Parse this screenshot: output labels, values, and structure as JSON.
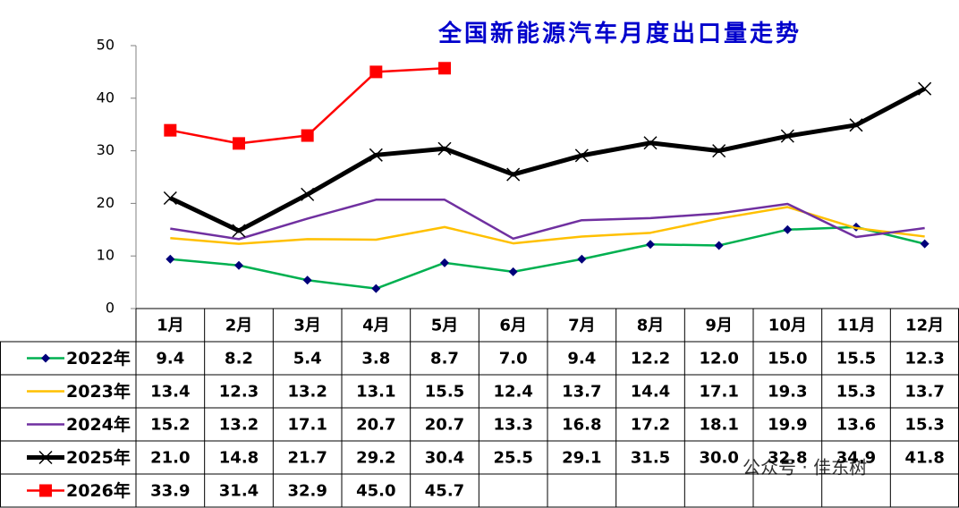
{
  "chart_data": {
    "type": "line",
    "title": "全国新能源汽车月度出口量走势",
    "watermark": "公众号 · 佳东树",
    "categories": [
      "1月",
      "2月",
      "3月",
      "4月",
      "5月",
      "6月",
      "7月",
      "8月",
      "9月",
      "10月",
      "11月",
      "12月"
    ],
    "ylim": [
      0,
      50
    ],
    "yticks": [
      0,
      10,
      20,
      30,
      40,
      50
    ],
    "grid": false,
    "series": [
      {
        "name": "2022年",
        "color": "#00b050",
        "marker": "diamond",
        "marker_color": "#00007a",
        "line_width": 2.5,
        "values": [
          9.4,
          8.2,
          5.4,
          3.8,
          8.7,
          7.0,
          9.4,
          12.2,
          12.0,
          15.0,
          15.5,
          12.3
        ],
        "value_labels": [
          "9.4",
          "8.2",
          "5.4",
          "3.8",
          "8.7",
          "7.0",
          "9.4",
          "12.2",
          "12.0",
          "15.0",
          "15.5",
          "12.3"
        ]
      },
      {
        "name": "2023年",
        "color": "#ffc000",
        "marker": "none",
        "marker_color": "#ffc000",
        "line_width": 2.5,
        "values": [
          13.4,
          12.3,
          13.2,
          13.1,
          15.5,
          12.4,
          13.7,
          14.4,
          17.1,
          19.3,
          15.3,
          13.7
        ],
        "value_labels": [
          "13.4",
          "12.3",
          "13.2",
          "13.1",
          "15.5",
          "12.4",
          "13.7",
          "14.4",
          "17.1",
          "19.3",
          "15.3",
          "13.7"
        ]
      },
      {
        "name": "2024年",
        "color": "#7030a0",
        "marker": "none",
        "marker_color": "#7030a0",
        "line_width": 2.5,
        "values": [
          15.2,
          13.2,
          17.1,
          20.7,
          20.7,
          13.3,
          16.8,
          17.2,
          18.1,
          19.9,
          13.6,
          15.3
        ],
        "value_labels": [
          "15.2",
          "13.2",
          "17.1",
          "20.7",
          "20.7",
          "13.3",
          "16.8",
          "17.2",
          "18.1",
          "19.9",
          "13.6",
          "15.3"
        ]
      },
      {
        "name": "2025年",
        "color": "#000000",
        "marker": "x",
        "marker_color": "#000000",
        "line_width": 5,
        "values": [
          21.0,
          14.8,
          21.7,
          29.2,
          30.4,
          25.5,
          29.1,
          31.5,
          30.0,
          32.8,
          34.9,
          41.8
        ],
        "value_labels": [
          "21.0",
          "14.8",
          "21.7",
          "29.2",
          "30.4",
          "25.5",
          "29.1",
          "31.5",
          "30.0",
          "32.8",
          "34.9",
          "41.8"
        ]
      },
      {
        "name": "2026年",
        "color": "#ff0000",
        "marker": "square",
        "marker_color": "#ff0000",
        "line_width": 2.5,
        "values": [
          33.9,
          31.4,
          32.9,
          45.0,
          45.7,
          null,
          null,
          null,
          null,
          null,
          null,
          null
        ],
        "value_labels": [
          "33.9",
          "31.4",
          "32.9",
          "45.0",
          "45.7",
          null,
          null,
          null,
          null,
          null,
          null,
          null
        ]
      }
    ]
  }
}
